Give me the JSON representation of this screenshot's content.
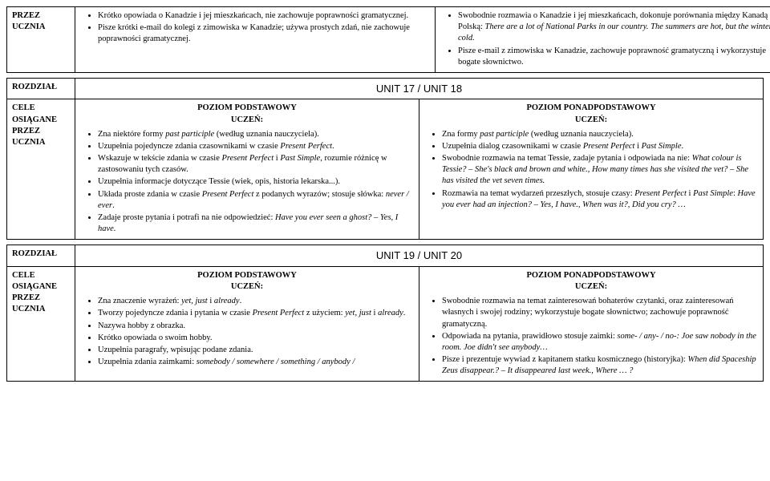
{
  "labels": {
    "przez_ucznia": "PRZEZ\nUCZNIA",
    "rozdzial": "ROZDZIAŁ",
    "cele": "CELE\nOSIĄGANE\nPRZEZ\nUCZNIA",
    "poziom_pod": "POZIOM PODSTAWOWY",
    "poziom_ponad": "POZIOM PONADPODSTAWOWY",
    "uczen": "UCZEŃ:"
  },
  "row_top": {
    "left": [
      "Krótko opowiada o Kanadzie i jej mieszkańcach, nie zachowuje poprawności gramatycznej.",
      "Pisze krótki e-mail do kolegi z zimowiska w Kanadzie; używa prostych zdań, nie zachowuje poprawności gramatycznej."
    ],
    "right": [
      "Swobodnie rozmawia o Kanadzie i jej mieszkańcach, dokonuje porównania między Kanadą i Polską: <em>There are a lot of National Parks in our country. The summers are hot, but the winters are cold.</em>",
      "Pisze e-mail z zimowiska w Kanadzie, zachowuje poprawność gramatyczną i wykorzystuje bogate słownictwo."
    ]
  },
  "unit1": {
    "title": "UNIT 17 / UNIT 18"
  },
  "row_u1": {
    "left": [
      "Zna niektóre formy <em>past participle</em> (według uznania nauczyciela).",
      "Uzupełnia pojedyncze zdania czasownikami w czasie <em>Present Perfect</em>.",
      "Wskazuje w tekście zdania w czasie <em>Present Perfect</em> i <em>Past Simple</em>, rozumie różnicę w zastosowaniu tych czasów.",
      "Uzupełnia informacje dotyczące Tessie (wiek, opis, historia lekarska...).",
      "Układa proste zdania w czasie <em>Present Perfect</em> z podanych wyrazów; stosuje słówka: <em>never / ever</em>.",
      "Zadaje proste pytania i potrafi na nie odpowiedzieć: <em>Have you ever seen a ghost? – Yes, I have.</em>"
    ],
    "right": [
      "Zna formy <em>past participle</em>  (według uznania nauczyciela).",
      "Uzupełnia dialog czasownikami w czasie <em>Present Perfect</em> i <em>Past Simple</em>.",
      "Swobodnie rozmawia na temat Tessie, zadaje pytania i odpowiada na nie: <em>What colour is Tessie? – She's black and brown and white., How many times has she visited the vet? – She has visited the vet seven times.</em>",
      "Rozmawia na temat wydarzeń przeszłych, stosuje czasy: <em>Present Perfect</em> i <em>Past Simple</em>: <em>Have you ever had an injection? –  Yes, I have.,  When was it?, Did you cry? …</em>"
    ]
  },
  "unit2": {
    "title": "UNIT 19 / UNIT 20"
  },
  "row_u2": {
    "left": [
      "Zna znaczenie wyrażeń: <em>yet, just</em> i <em>already</em>.",
      "Tworzy pojedyncze zdania i pytania w czasie <em>Present Perfect</em> z użyciem: <em>yet, just</em> i <em>already</em>.",
      "Nazywa hobby z obrazka.",
      "Krótko opowiada o swoim hobby.",
      "Uzupełnia paragrafy, wpisując podane zdania.",
      "Uzupełnia zdania zaimkami: <em>somebody / somewhere / something / anybody /</em>"
    ],
    "right": [
      "Swobodnie rozmawia na temat zainteresowań bohaterów czytanki, oraz zainteresowań własnych i swojej rodziny; wykorzystuje bogate słownictwo; zachowuje poprawność gramatyczną.",
      "Odpowiada na pytania, prawidłowo stosuje zaimki: <em>some- / any- / no-: Joe saw nobody in the room. Joe didn't see anybody…</em>",
      " Pisze i prezentuje wywiad z kapitanem statku kosmicznego (historyjka): <em>When did Spaceship Zeus disappear.? –  It disappeared last week., Where … ?</em>"
    ]
  }
}
